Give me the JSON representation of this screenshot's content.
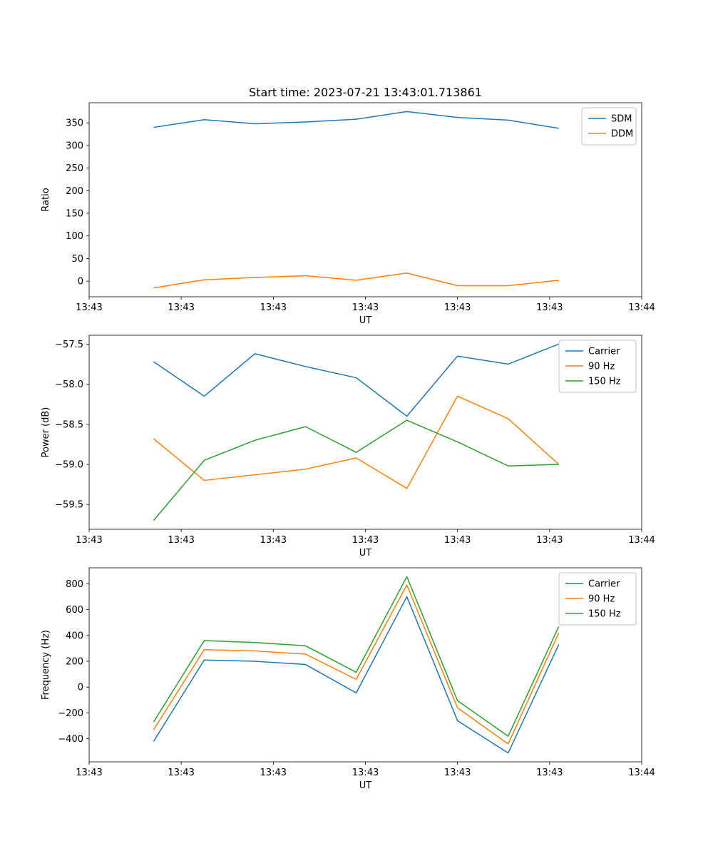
{
  "figure": {
    "title": "Start time: 2023-07-21 13:43:01.713861",
    "background_color": "#ffffff"
  },
  "chart_data": [
    {
      "type": "line",
      "title": "Start time: 2023-07-21 13:43:01.713861",
      "xlabel": "UT",
      "ylabel": "Ratio",
      "x_tick_labels": [
        "13:43",
        "13:43",
        "13:43",
        "13:43",
        "13:43",
        "13:43",
        "13:44"
      ],
      "x_range_seconds": [
        0,
        60
      ],
      "x_seconds": [
        7,
        12.5,
        18,
        23.5,
        29,
        34.5,
        40,
        45.5,
        51
      ],
      "ylim": [
        -34.5,
        394.5
      ],
      "y_ticks": [
        0,
        50,
        100,
        150,
        200,
        250,
        300,
        350
      ],
      "y_tick_decimals": 0,
      "grid": false,
      "legend_position": "upper right",
      "series": [
        {
          "name": "SDM",
          "color": "#1f77b4",
          "values": [
            340,
            357,
            348,
            352,
            358,
            375,
            362,
            356,
            338
          ]
        },
        {
          "name": "DDM",
          "color": "#ff7f0e",
          "values": [
            -15,
            3,
            8,
            12,
            2,
            18,
            -10,
            -10,
            2
          ]
        }
      ]
    },
    {
      "type": "line",
      "title": "",
      "xlabel": "UT",
      "ylabel": "Power (dB)",
      "x_tick_labels": [
        "13:43",
        "13:43",
        "13:43",
        "13:43",
        "13:43",
        "13:43",
        "13:44"
      ],
      "x_range_seconds": [
        0,
        60
      ],
      "x_seconds": [
        7,
        12.5,
        18,
        23.5,
        29,
        34.5,
        40,
        45.5,
        51
      ],
      "ylim": [
        -59.81,
        -57.39
      ],
      "y_ticks": [
        -59.5,
        -59.0,
        -58.5,
        -58.0,
        -57.5
      ],
      "y_tick_decimals": 1,
      "grid": false,
      "legend_position": "upper right",
      "series": [
        {
          "name": "Carrier",
          "color": "#1f77b4",
          "values": [
            -57.72,
            -58.15,
            -57.62,
            -57.78,
            -57.92,
            -58.4,
            -57.65,
            -57.75,
            -57.5
          ]
        },
        {
          "name": "90 Hz",
          "color": "#ff7f0e",
          "values": [
            -58.68,
            -59.2,
            -59.13,
            -59.06,
            -58.92,
            -59.3,
            -58.15,
            -58.43,
            -59.0
          ]
        },
        {
          "name": "150 Hz",
          "color": "#2ca02c",
          "values": [
            -59.7,
            -58.95,
            -58.7,
            -58.53,
            -58.85,
            -58.45,
            -58.72,
            -59.02,
            -59.0
          ]
        }
      ]
    },
    {
      "type": "line",
      "title": "",
      "xlabel": "UT",
      "ylabel": "Frequency (Hz)",
      "x_tick_labels": [
        "13:43",
        "13:43",
        "13:43",
        "13:43",
        "13:43",
        "13:43",
        "13:44"
      ],
      "x_range_seconds": [
        0,
        60
      ],
      "x_seconds": [
        7,
        12.5,
        18,
        23.5,
        29,
        34.5,
        40,
        45.5,
        51
      ],
      "ylim": [
        -578.25,
        923.25
      ],
      "y_ticks": [
        -400,
        -200,
        0,
        200,
        400,
        600,
        800
      ],
      "y_tick_decimals": 0,
      "grid": false,
      "legend_position": "upper right",
      "series": [
        {
          "name": "Carrier",
          "color": "#1f77b4",
          "values": [
            -420,
            210,
            200,
            175,
            -45,
            700,
            -260,
            -510,
            330
          ]
        },
        {
          "name": "90 Hz",
          "color": "#ff7f0e",
          "values": [
            -330,
            290,
            280,
            255,
            60,
            790,
            -160,
            -440,
            420
          ]
        },
        {
          "name": "150 Hz",
          "color": "#2ca02c",
          "values": [
            -270,
            360,
            345,
            320,
            115,
            855,
            -105,
            -380,
            470
          ]
        }
      ]
    }
  ]
}
